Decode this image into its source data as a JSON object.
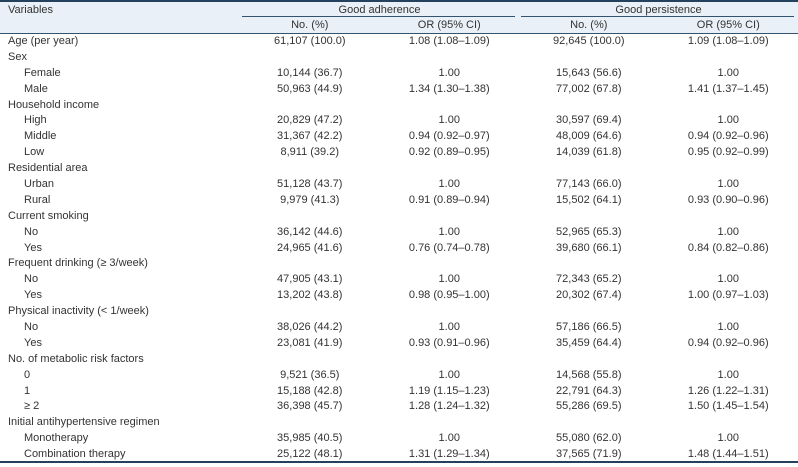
{
  "colors": {
    "header_bg": "#e9f0f7",
    "border_dark": "#24425e",
    "line": "#33536f",
    "text": "#333333"
  },
  "table": {
    "header": {
      "variables": "Variables",
      "groups": [
        "Good adherence",
        "Good persistence"
      ],
      "subcolumns": [
        "No. (%)",
        "OR (95% CI)",
        "No. (%)",
        "OR (95% CI)"
      ]
    },
    "rows": [
      {
        "label": "Age (per year)",
        "indent": 0,
        "values": [
          "61,107 (100.0)",
          "1.08 (1.08–1.09)",
          "92,645 (100.0)",
          "1.09 (1.08–1.09)"
        ]
      },
      {
        "label": "Sex",
        "indent": 0,
        "values": [
          "",
          "",
          "",
          ""
        ]
      },
      {
        "label": "Female",
        "indent": 1,
        "values": [
          "10,144 (36.7)",
          "1.00",
          "15,643 (56.6)",
          "1.00"
        ]
      },
      {
        "label": "Male",
        "indent": 1,
        "values": [
          "50,963 (44.9)",
          "1.34 (1.30–1.38)",
          "77,002 (67.8)",
          "1.41 (1.37–1.45)"
        ]
      },
      {
        "label": "Household income",
        "indent": 0,
        "values": [
          "",
          "",
          "",
          ""
        ]
      },
      {
        "label": "High",
        "indent": 1,
        "values": [
          "20,829 (47.2)",
          "1.00",
          "30,597 (69.4)",
          "1.00"
        ]
      },
      {
        "label": "Middle",
        "indent": 1,
        "values": [
          "31,367 (42.2)",
          "0.94 (0.92–0.97)",
          "48,009 (64.6)",
          "0.94 (0.92–0.96)"
        ]
      },
      {
        "label": "Low",
        "indent": 1,
        "values": [
          "8,911 (39.2)",
          "0.92 (0.89–0.95)",
          "14,039 (61.8)",
          "0.95 (0.92–0.99)"
        ]
      },
      {
        "label": "Residential area",
        "indent": 0,
        "values": [
          "",
          "",
          "",
          ""
        ]
      },
      {
        "label": "Urban",
        "indent": 1,
        "values": [
          "51,128 (43.7)",
          "1.00",
          "77,143 (66.0)",
          "1.00"
        ]
      },
      {
        "label": "Rural",
        "indent": 1,
        "values": [
          "9,979 (41.3)",
          "0.91 (0.89–0.94)",
          "15,502 (64.1)",
          "0.93 (0.90–0.96)"
        ]
      },
      {
        "label": "Current smoking",
        "indent": 0,
        "values": [
          "",
          "",
          "",
          ""
        ]
      },
      {
        "label": "No",
        "indent": 1,
        "values": [
          "36,142 (44.6)",
          "1.00",
          "52,965 (65.3)",
          "1.00"
        ]
      },
      {
        "label": "Yes",
        "indent": 1,
        "values": [
          "24,965 (41.6)",
          "0.76 (0.74–0.78)",
          "39,680 (66.1)",
          "0.84 (0.82–0.86)"
        ]
      },
      {
        "label": "Frequent drinking (≥ 3/week)",
        "indent": 0,
        "values": [
          "",
          "",
          "",
          ""
        ]
      },
      {
        "label": "No",
        "indent": 1,
        "values": [
          "47,905 (43.1)",
          "1.00",
          "72,343 (65.2)",
          "1.00"
        ]
      },
      {
        "label": "Yes",
        "indent": 1,
        "values": [
          "13,202 (43.8)",
          "0.98 (0.95–1.00)",
          "20,302 (67.4)",
          "1.00 (0.97–1.03)"
        ]
      },
      {
        "label": "Physical inactivity (< 1/week)",
        "indent": 0,
        "values": [
          "",
          "",
          "",
          ""
        ]
      },
      {
        "label": "No",
        "indent": 1,
        "values": [
          "38,026 (44.2)",
          "1.00",
          "57,186 (66.5)",
          "1.00"
        ]
      },
      {
        "label": "Yes",
        "indent": 1,
        "values": [
          "23,081 (41.9)",
          "0.93 (0.91–0.96)",
          "35,459 (64.4)",
          "0.94 (0.92–0.96)"
        ]
      },
      {
        "label": "No. of metabolic risk factors",
        "indent": 0,
        "values": [
          "",
          "",
          "",
          ""
        ]
      },
      {
        "label": "0",
        "indent": 1,
        "values": [
          "9,521 (36.5)",
          "1.00",
          "14,568 (55.8)",
          "1.00"
        ]
      },
      {
        "label": "1",
        "indent": 1,
        "values": [
          "15,188 (42.8)",
          "1.19 (1.15–1.23)",
          "22,791 (64.3)",
          "1.26 (1.22–1.31)"
        ]
      },
      {
        "label": "≥ 2",
        "indent": 1,
        "values": [
          "36,398 (45.7)",
          "1.28 (1.24–1.32)",
          "55,286 (69.5)",
          "1.50 (1.45–1.54)"
        ]
      },
      {
        "label": "Initial antihypertensive regimen",
        "indent": 0,
        "values": [
          "",
          "",
          "",
          ""
        ]
      },
      {
        "label": "Monotherapy",
        "indent": 1,
        "values": [
          "35,985 (40.5)",
          "1.00",
          "55,080 (62.0)",
          "1.00"
        ]
      },
      {
        "label": "Combination therapy",
        "indent": 1,
        "values": [
          "25,122 (48.1)",
          "1.31 (1.29–1.34)",
          "37,565 (71.9)",
          "1.48 (1.44–1.51)"
        ]
      }
    ]
  }
}
